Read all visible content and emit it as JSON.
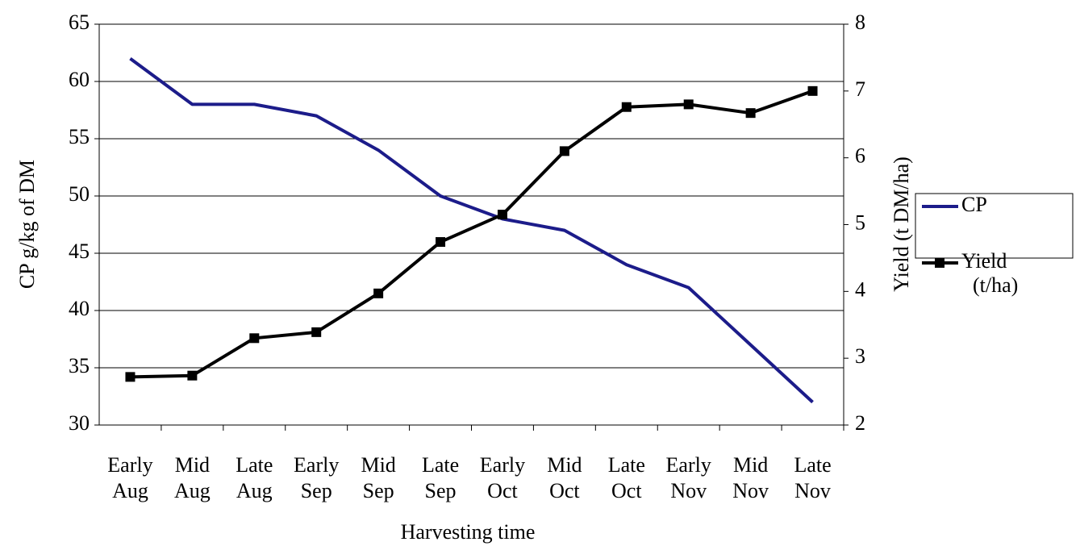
{
  "chart_data": {
    "type": "line",
    "x_label": "Harvesting time",
    "y_label": "CP g/kg of DM",
    "y2_label": "Yield (t DM/ha)",
    "categories": [
      "Early Aug",
      "Mid Aug",
      "Late Aug",
      "Early Sep",
      "Mid Sep",
      "Late Sep",
      "Early Oct",
      "Mid Oct",
      "Late Oct",
      "Early Nov",
      "Mid Nov",
      "Late Nov"
    ],
    "series": [
      {
        "name": "CP",
        "color": "#1c1c8a",
        "marker": "none",
        "values": [
          62,
          58,
          58,
          57,
          54,
          50,
          48,
          47,
          44,
          42,
          37,
          32
        ]
      },
      {
        "name": "Yield (t/ha)",
        "color": "#000000",
        "marker": "square",
        "axis": "y2",
        "values": [
          2.72,
          2.74,
          3.3,
          3.39,
          3.97,
          4.74,
          5.15,
          6.1,
          6.76,
          6.8,
          6.67,
          7.0
        ]
      }
    ],
    "ylim": [
      30,
      65
    ],
    "yticks": [
      30,
      35,
      40,
      45,
      50,
      55,
      60,
      65
    ],
    "y2lim": [
      2,
      8
    ],
    "y2ticks": [
      2,
      3,
      4,
      5,
      6,
      7,
      8
    ],
    "grid": true,
    "legend": "right"
  }
}
